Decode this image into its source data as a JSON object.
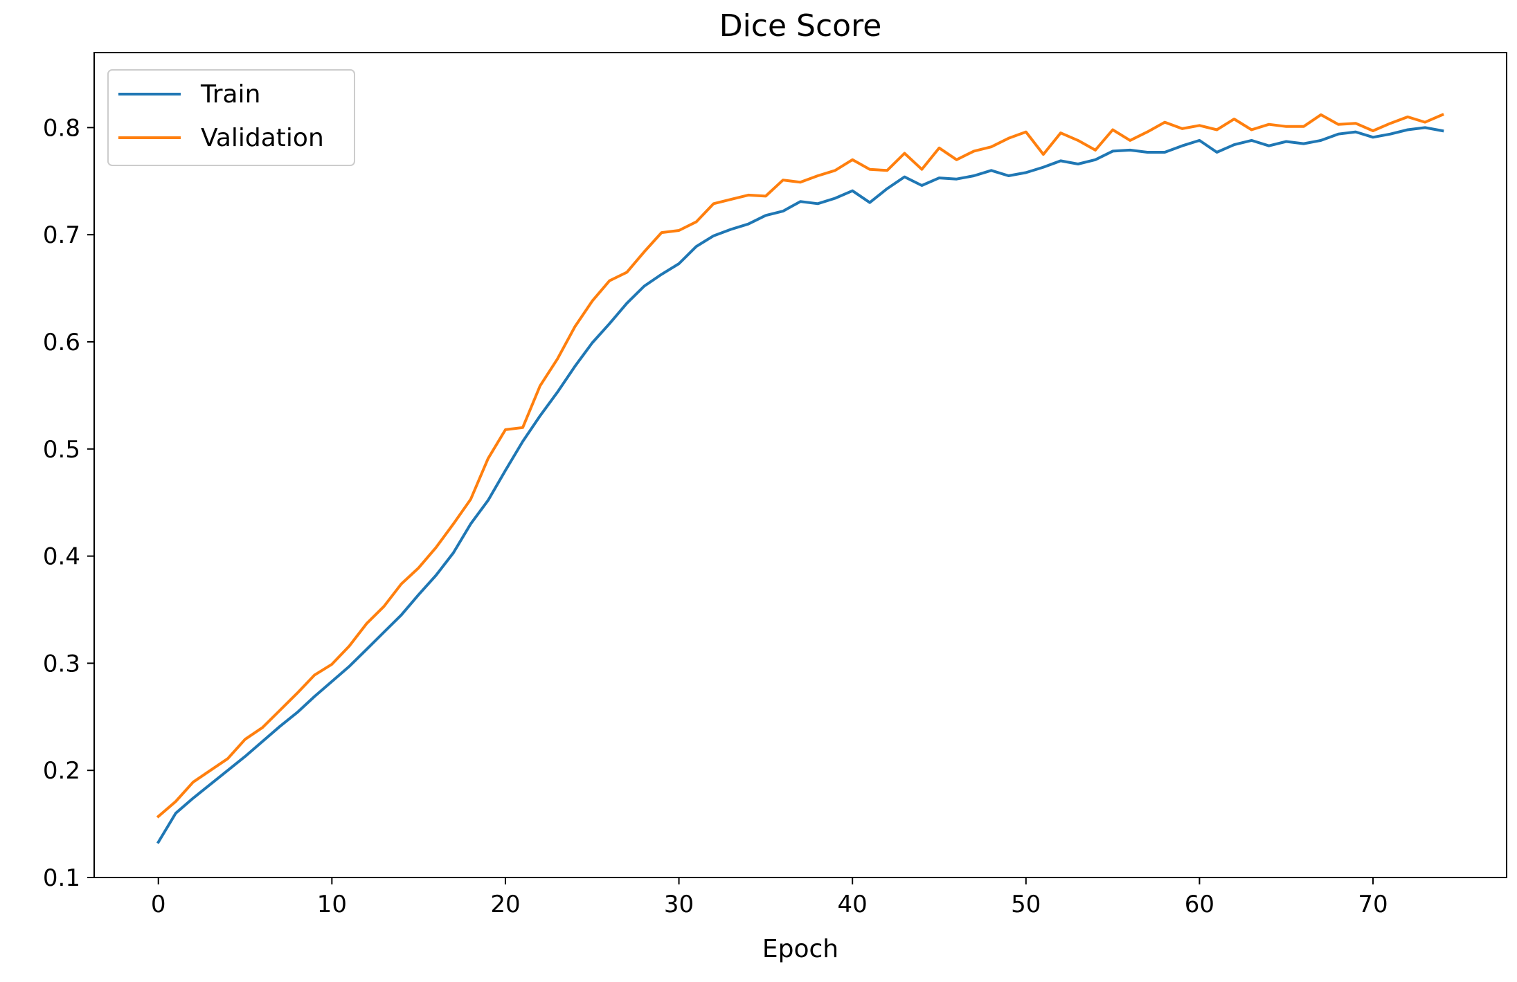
{
  "chart_data": {
    "type": "line",
    "title": "Dice Score",
    "xlabel": "Epoch",
    "ylabel": "",
    "xlim": [
      -3.7,
      77.7
    ],
    "ylim": [
      0.1,
      0.87
    ],
    "xticks": [
      0,
      10,
      20,
      30,
      40,
      50,
      60,
      70
    ],
    "yticks": [
      0.1,
      0.2,
      0.3,
      0.4,
      0.5,
      0.6,
      0.7,
      0.8
    ],
    "grid": false,
    "legend_position": "top-left",
    "x": [
      0,
      1,
      2,
      3,
      4,
      5,
      6,
      7,
      8,
      9,
      10,
      11,
      12,
      13,
      14,
      15,
      16,
      17,
      18,
      19,
      20,
      21,
      22,
      23,
      24,
      25,
      26,
      27,
      28,
      29,
      30,
      31,
      32,
      33,
      34,
      35,
      36,
      37,
      38,
      39,
      40,
      41,
      42,
      43,
      44,
      45,
      46,
      47,
      48,
      49,
      50,
      51,
      52,
      53,
      54,
      55,
      56,
      57,
      58,
      59,
      60,
      61,
      62,
      63,
      64,
      65,
      66,
      67,
      68,
      69,
      70,
      71,
      72,
      73,
      74
    ],
    "series": [
      {
        "name": "Train",
        "color": "#1f77b4",
        "values": [
          0.133,
          0.16,
          0.174,
          0.187,
          0.2,
          0.213,
          0.227,
          0.241,
          0.254,
          0.269,
          0.283,
          0.297,
          0.313,
          0.329,
          0.345,
          0.364,
          0.382,
          0.403,
          0.43,
          0.452,
          0.48,
          0.507,
          0.531,
          0.553,
          0.577,
          0.599,
          0.617,
          0.636,
          0.652,
          0.663,
          0.673,
          0.689,
          0.699,
          0.705,
          0.71,
          0.718,
          0.722,
          0.731,
          0.729,
          0.734,
          0.741,
          0.73,
          0.743,
          0.754,
          0.746,
          0.753,
          0.752,
          0.755,
          0.76,
          0.755,
          0.758,
          0.763,
          0.769,
          0.766,
          0.77,
          0.778,
          0.779,
          0.777,
          0.777,
          0.783,
          0.788,
          0.777,
          0.784,
          0.788,
          0.783,
          0.787,
          0.785,
          0.788,
          0.794,
          0.796,
          0.791,
          0.794,
          0.798,
          0.8,
          0.797
        ]
      },
      {
        "name": "Validation",
        "color": "#ff7f0e",
        "values": [
          0.157,
          0.171,
          0.189,
          0.2,
          0.211,
          0.229,
          0.24,
          0.256,
          0.272,
          0.289,
          0.299,
          0.316,
          0.337,
          0.353,
          0.374,
          0.389,
          0.408,
          0.43,
          0.453,
          0.491,
          0.518,
          0.52,
          0.559,
          0.584,
          0.614,
          0.638,
          0.657,
          0.665,
          0.684,
          0.702,
          0.704,
          0.712,
          0.729,
          0.733,
          0.737,
          0.736,
          0.751,
          0.749,
          0.755,
          0.76,
          0.77,
          0.761,
          0.76,
          0.776,
          0.761,
          0.781,
          0.77,
          0.778,
          0.782,
          0.79,
          0.796,
          0.775,
          0.795,
          0.788,
          0.779,
          0.798,
          0.788,
          0.796,
          0.805,
          0.799,
          0.802,
          0.798,
          0.808,
          0.798,
          0.803,
          0.801,
          0.801,
          0.812,
          0.803,
          0.804,
          0.797,
          0.804,
          0.81,
          0.805,
          0.812
        ]
      }
    ]
  }
}
